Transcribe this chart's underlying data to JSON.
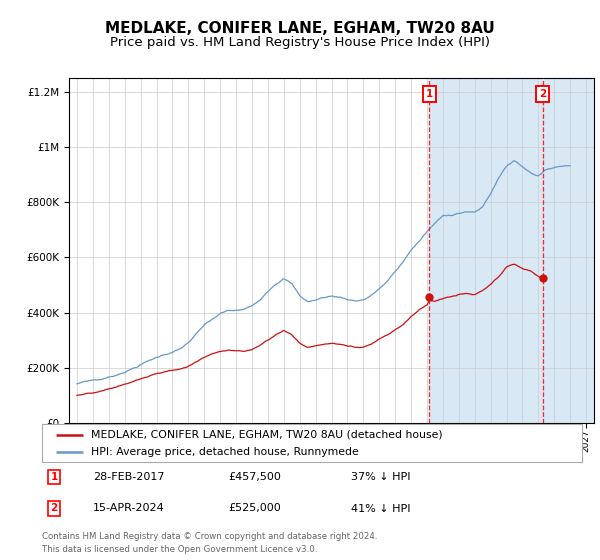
{
  "title": "MEDLAKE, CONIFER LANE, EGHAM, TW20 8AU",
  "subtitle": "Price paid vs. HM Land Registry's House Price Index (HPI)",
  "legend_label_red": "MEDLAKE, CONIFER LANE, EGHAM, TW20 8AU (detached house)",
  "legend_label_blue": "HPI: Average price, detached house, Runnymede",
  "footer": "Contains HM Land Registry data © Crown copyright and database right 2024.\nThis data is licensed under the Open Government Licence v3.0.",
  "marker1_date": "28-FEB-2017",
  "marker1_price": "£457,500",
  "marker1_hpi": "37% ↓ HPI",
  "marker1_x": 2017.15,
  "marker1_y": 457500,
  "marker2_date": "15-APR-2024",
  "marker2_price": "£525,000",
  "marker2_hpi": "41% ↓ HPI",
  "marker2_x": 2024.29,
  "marker2_y": 525000,
  "shade_start": 2017.15,
  "shade_mid": 2024.29,
  "shade_end": 2027.5,
  "ylim": [
    0,
    1250000
  ],
  "xlim": [
    1994.5,
    2027.5
  ],
  "background_color": "#ffffff",
  "grid_color": "#cccccc",
  "shade_color": "#d8e8f5",
  "red_color": "#cc1111",
  "blue_color": "#6699cc",
  "title_fontsize": 11,
  "subtitle_fontsize": 9.5
}
